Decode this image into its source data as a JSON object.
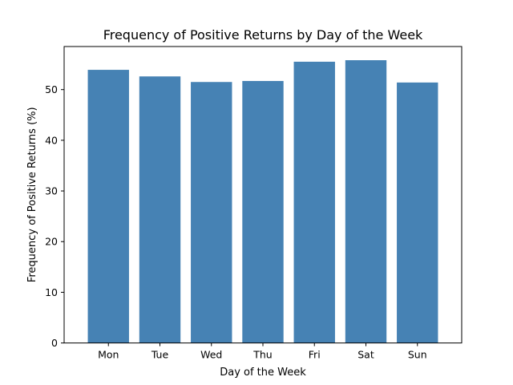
{
  "chart_data": {
    "type": "bar",
    "title": "Frequency of Positive Returns by Day of the Week",
    "xlabel": "Day of the Week",
    "ylabel": "Frequency of Positive Returns (%)",
    "categories": [
      "Mon",
      "Tue",
      "Wed",
      "Thu",
      "Fri",
      "Sat",
      "Sun"
    ],
    "values": [
      53.9,
      52.6,
      51.5,
      51.7,
      55.5,
      55.8,
      51.4
    ],
    "ylim": [
      0,
      58.5
    ],
    "yticks": [
      0,
      10,
      20,
      30,
      40,
      50
    ],
    "bar_color": "#4682b4",
    "grid": false,
    "legend": "none"
  }
}
